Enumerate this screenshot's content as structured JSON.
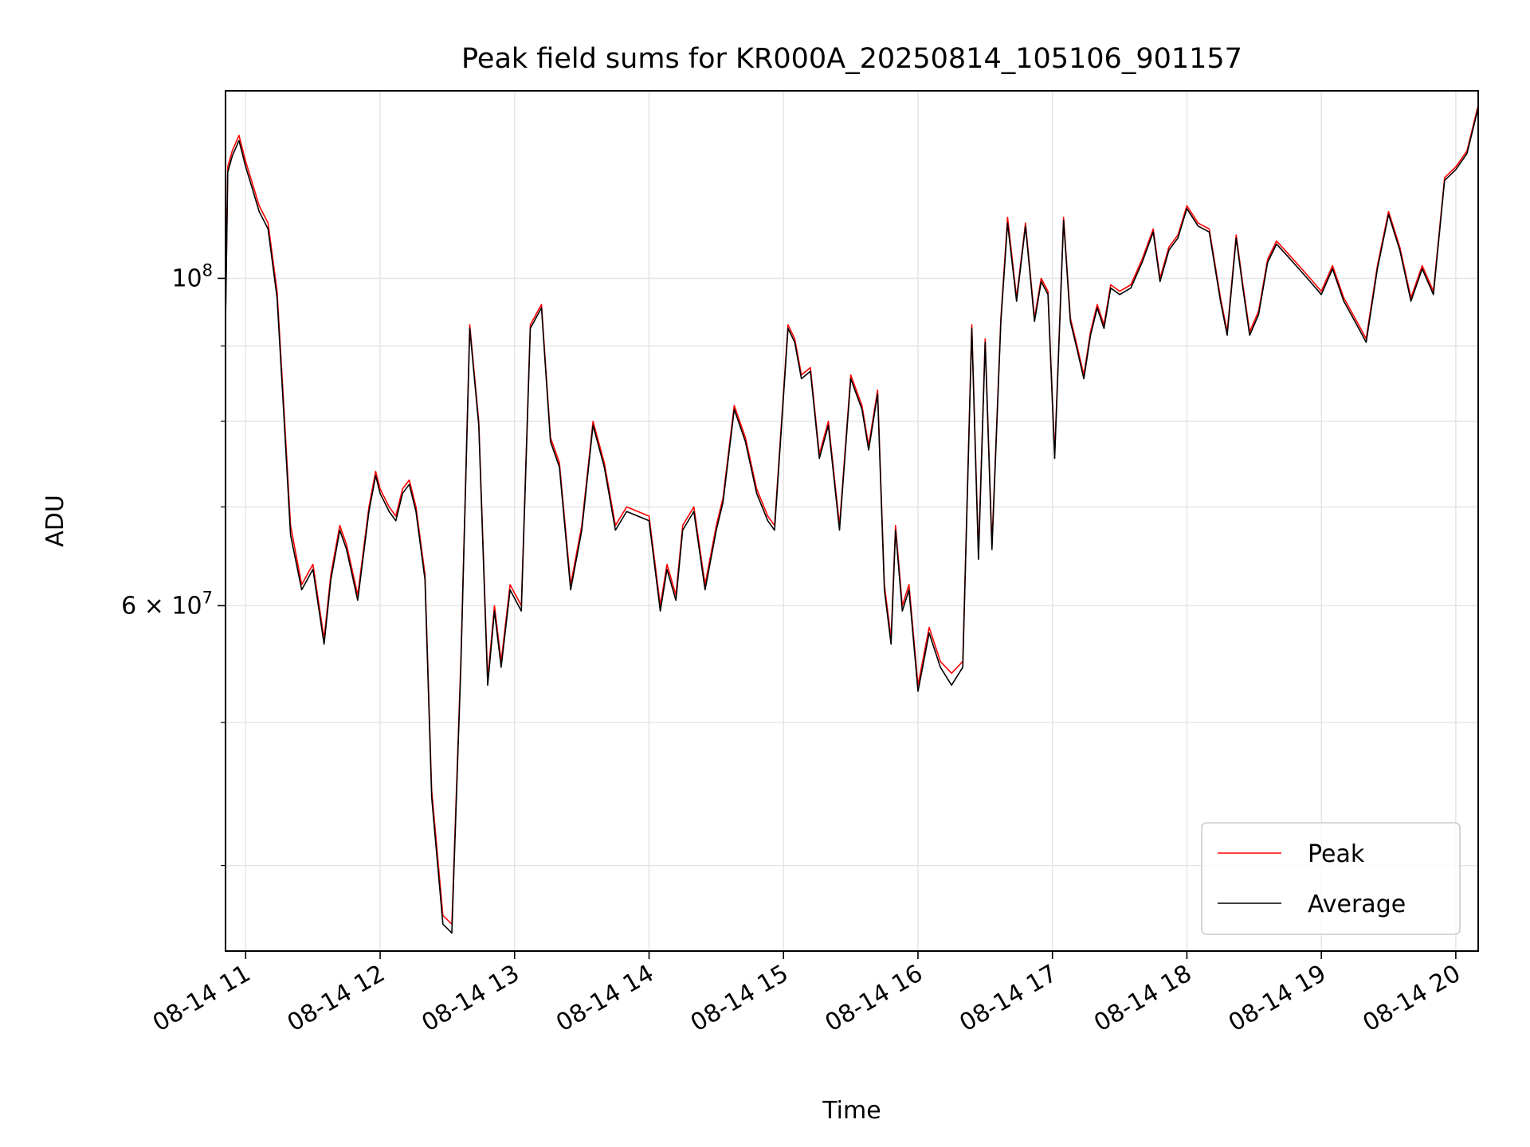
{
  "chart_data": {
    "type": "line",
    "title": "Peak field sums for KR000A_20250814_105106_901157",
    "xlabel": "Time",
    "ylabel": "ADU",
    "y_scale": "log",
    "ylim": [
      35000000,
      134000000
    ],
    "xlim": [
      "2025-08-14 10:51",
      "2025-08-14 20:10"
    ],
    "x_ticks": [
      "08-14 11",
      "08-14 12",
      "08-14 13",
      "08-14 14",
      "08-14 15",
      "08-14 16",
      "08-14 17",
      "08-14 18",
      "08-14 19",
      "08-14 20"
    ],
    "y_major_ticks": [
      {
        "value": 60000000,
        "label": "6 × 10⁷",
        "mantissa": "6",
        "exp": "7"
      },
      {
        "value": 100000000,
        "label": "10⁸",
        "mantissa": "",
        "exp": "8"
      }
    ],
    "y_minor_ticks": [
      40000000,
      50000000,
      70000000,
      80000000,
      90000000
    ],
    "grid": true,
    "legend_position": "lower-right",
    "colors": {
      "Peak": "#ff0000",
      "Average": "#000000"
    },
    "series": [
      {
        "name": "Peak",
        "x": [
          "2025-08-14 10:51",
          "2025-08-14 10:52",
          "2025-08-14 10:54",
          "2025-08-14 10:57",
          "2025-08-14 11:00",
          "2025-08-14 11:03",
          "2025-08-14 11:06",
          "2025-08-14 11:10",
          "2025-08-14 11:14",
          "2025-08-14 11:17",
          "2025-08-14 11:20",
          "2025-08-14 11:25",
          "2025-08-14 11:30",
          "2025-08-14 11:35",
          "2025-08-14 11:38",
          "2025-08-14 11:42",
          "2025-08-14 11:45",
          "2025-08-14 11:50",
          "2025-08-14 11:55",
          "2025-08-14 11:58",
          "2025-08-14 12:00",
          "2025-08-14 12:04",
          "2025-08-14 12:07",
          "2025-08-14 12:10",
          "2025-08-14 12:13",
          "2025-08-14 12:16",
          "2025-08-14 12:20",
          "2025-08-14 12:23",
          "2025-08-14 12:28",
          "2025-08-14 12:32",
          "2025-08-14 12:36",
          "2025-08-14 12:40",
          "2025-08-14 12:44",
          "2025-08-14 12:48",
          "2025-08-14 12:51",
          "2025-08-14 12:54",
          "2025-08-14 12:58",
          "2025-08-14 13:03",
          "2025-08-14 13:07",
          "2025-08-14 13:12",
          "2025-08-14 13:16",
          "2025-08-14 13:20",
          "2025-08-14 13:25",
          "2025-08-14 13:30",
          "2025-08-14 13:35",
          "2025-08-14 13:40",
          "2025-08-14 13:45",
          "2025-08-14 13:50",
          "2025-08-14 14:00",
          "2025-08-14 14:05",
          "2025-08-14 14:08",
          "2025-08-14 14:12",
          "2025-08-14 14:15",
          "2025-08-14 14:20",
          "2025-08-14 14:25",
          "2025-08-14 14:30",
          "2025-08-14 14:33",
          "2025-08-14 14:38",
          "2025-08-14 14:43",
          "2025-08-14 14:48",
          "2025-08-14 14:53",
          "2025-08-14 14:56",
          "2025-08-14 15:02",
          "2025-08-14 15:05",
          "2025-08-14 15:08",
          "2025-08-14 15:12",
          "2025-08-14 15:16",
          "2025-08-14 15:20",
          "2025-08-14 15:25",
          "2025-08-14 15:30",
          "2025-08-14 15:35",
          "2025-08-14 15:38",
          "2025-08-14 15:42",
          "2025-08-14 15:45",
          "2025-08-14 15:48",
          "2025-08-14 15:50",
          "2025-08-14 15:53",
          "2025-08-14 15:56",
          "2025-08-14 16:00",
          "2025-08-14 16:05",
          "2025-08-14 16:10",
          "2025-08-14 16:15",
          "2025-08-14 16:20",
          "2025-08-14 16:24",
          "2025-08-14 16:27",
          "2025-08-14 16:30",
          "2025-08-14 16:33",
          "2025-08-14 16:37",
          "2025-08-14 16:40",
          "2025-08-14 16:44",
          "2025-08-14 16:48",
          "2025-08-14 16:52",
          "2025-08-14 16:55",
          "2025-08-14 16:58",
          "2025-08-14 17:01",
          "2025-08-14 17:05",
          "2025-08-14 17:08",
          "2025-08-14 17:11",
          "2025-08-14 17:14",
          "2025-08-14 17:17",
          "2025-08-14 17:20",
          "2025-08-14 17:23",
          "2025-08-14 17:26",
          "2025-08-14 17:30",
          "2025-08-14 17:35",
          "2025-08-14 17:40",
          "2025-08-14 17:45",
          "2025-08-14 17:48",
          "2025-08-14 17:52",
          "2025-08-14 17:56",
          "2025-08-14 18:00",
          "2025-08-14 18:05",
          "2025-08-14 18:10",
          "2025-08-14 18:15",
          "2025-08-14 18:18",
          "2025-08-14 18:22",
          "2025-08-14 18:25",
          "2025-08-14 18:28",
          "2025-08-14 18:32",
          "2025-08-14 18:36",
          "2025-08-14 18:40",
          "2025-08-14 18:45",
          "2025-08-14 18:50",
          "2025-08-14 18:55",
          "2025-08-14 19:00",
          "2025-08-14 19:05",
          "2025-08-14 19:10",
          "2025-08-14 19:15",
          "2025-08-14 19:20",
          "2025-08-14 19:25",
          "2025-08-14 19:30",
          "2025-08-14 19:35",
          "2025-08-14 19:40",
          "2025-08-14 19:45",
          "2025-08-14 19:50",
          "2025-08-14 19:55",
          "2025-08-14 20:00",
          "2025-08-14 20:05",
          "2025-08-14 20:10"
        ],
        "y": [
          94000000,
          119000000,
          122000000,
          125000000,
          120000000,
          116000000,
          112000000,
          109000000,
          98000000,
          82000000,
          68000000,
          62000000,
          64000000,
          57000000,
          63000000,
          68000000,
          66000000,
          61000000,
          70000000,
          74000000,
          72000000,
          70000000,
          69000000,
          72000000,
          73000000,
          70000000,
          63000000,
          45000000,
          37000000,
          36500000,
          55000000,
          93000000,
          80000000,
          53500000,
          60000000,
          55000000,
          62000000,
          60000000,
          93000000,
          96000000,
          78000000,
          75000000,
          62000000,
          68000000,
          80000000,
          75000000,
          68000000,
          70000000,
          69000000,
          60000000,
          64000000,
          61000000,
          68000000,
          70000000,
          62000000,
          68000000,
          71000000,
          82000000,
          78000000,
          72000000,
          69000000,
          68000000,
          93000000,
          91000000,
          86000000,
          87000000,
          76000000,
          80000000,
          68000000,
          86000000,
          82000000,
          77000000,
          84000000,
          62000000,
          57000000,
          68000000,
          60000000,
          62000000,
          53000000,
          58000000,
          55000000,
          54000000,
          55000000,
          93000000,
          65000000,
          91000000,
          66000000,
          94000000,
          110000000,
          97000000,
          109000000,
          94000000,
          100000000,
          98000000,
          76000000,
          110000000,
          94000000,
          90000000,
          86000000,
          92000000,
          96000000,
          93000000,
          99000000,
          98000000,
          99000000,
          103000000,
          108000000,
          100000000,
          105000000,
          107000000,
          112000000,
          109000000,
          108000000,
          97000000,
          92000000,
          107000000,
          99000000,
          92000000,
          95000000,
          103000000,
          106000000,
          104000000,
          102000000,
          100000000,
          98000000,
          102000000,
          97000000,
          94000000,
          91000000,
          102000000,
          111000000,
          105000000,
          97000000,
          102000000,
          98000000,
          117000000,
          119000000,
          122000000,
          131000000
        ],
        "note": ""
      },
      {
        "name": "Average",
        "x": [
          "2025-08-14 10:51",
          "2025-08-14 10:52",
          "2025-08-14 10:54",
          "2025-08-14 10:57",
          "2025-08-14 11:00",
          "2025-08-14 11:03",
          "2025-08-14 11:06",
          "2025-08-14 11:10",
          "2025-08-14 11:14",
          "2025-08-14 11:17",
          "2025-08-14 11:20",
          "2025-08-14 11:25",
          "2025-08-14 11:30",
          "2025-08-14 11:35",
          "2025-08-14 11:38",
          "2025-08-14 11:42",
          "2025-08-14 11:45",
          "2025-08-14 11:50",
          "2025-08-14 11:55",
          "2025-08-14 11:58",
          "2025-08-14 12:00",
          "2025-08-14 12:04",
          "2025-08-14 12:07",
          "2025-08-14 12:10",
          "2025-08-14 12:13",
          "2025-08-14 12:16",
          "2025-08-14 12:20",
          "2025-08-14 12:23",
          "2025-08-14 12:28",
          "2025-08-14 12:32",
          "2025-08-14 12:36",
          "2025-08-14 12:40",
          "2025-08-14 12:44",
          "2025-08-14 12:48",
          "2025-08-14 12:51",
          "2025-08-14 12:54",
          "2025-08-14 12:58",
          "2025-08-14 13:03",
          "2025-08-14 13:07",
          "2025-08-14 13:12",
          "2025-08-14 13:16",
          "2025-08-14 13:20",
          "2025-08-14 13:25",
          "2025-08-14 13:30",
          "2025-08-14 13:35",
          "2025-08-14 13:40",
          "2025-08-14 13:45",
          "2025-08-14 13:50",
          "2025-08-14 14:00",
          "2025-08-14 14:05",
          "2025-08-14 14:08",
          "2025-08-14 14:12",
          "2025-08-14 14:15",
          "2025-08-14 14:20",
          "2025-08-14 14:25",
          "2025-08-14 14:30",
          "2025-08-14 14:33",
          "2025-08-14 14:38",
          "2025-08-14 14:43",
          "2025-08-14 14:48",
          "2025-08-14 14:53",
          "2025-08-14 14:56",
          "2025-08-14 15:02",
          "2025-08-14 15:05",
          "2025-08-14 15:08",
          "2025-08-14 15:12",
          "2025-08-14 15:16",
          "2025-08-14 15:20",
          "2025-08-14 15:25",
          "2025-08-14 15:30",
          "2025-08-14 15:35",
          "2025-08-14 15:38",
          "2025-08-14 15:42",
          "2025-08-14 15:45",
          "2025-08-14 15:48",
          "2025-08-14 15:50",
          "2025-08-14 15:53",
          "2025-08-14 15:56",
          "2025-08-14 16:00",
          "2025-08-14 16:05",
          "2025-08-14 16:10",
          "2025-08-14 16:15",
          "2025-08-14 16:20",
          "2025-08-14 16:24",
          "2025-08-14 16:27",
          "2025-08-14 16:30",
          "2025-08-14 16:33",
          "2025-08-14 16:37",
          "2025-08-14 16:40",
          "2025-08-14 16:44",
          "2025-08-14 16:48",
          "2025-08-14 16:52",
          "2025-08-14 16:55",
          "2025-08-14 16:58",
          "2025-08-14 17:01",
          "2025-08-14 17:05",
          "2025-08-14 17:08",
          "2025-08-14 17:11",
          "2025-08-14 17:14",
          "2025-08-14 17:17",
          "2025-08-14 17:20",
          "2025-08-14 17:23",
          "2025-08-14 17:26",
          "2025-08-14 17:30",
          "2025-08-14 17:35",
          "2025-08-14 17:40",
          "2025-08-14 17:45",
          "2025-08-14 17:48",
          "2025-08-14 17:52",
          "2025-08-14 17:56",
          "2025-08-14 18:00",
          "2025-08-14 18:05",
          "2025-08-14 18:10",
          "2025-08-14 18:15",
          "2025-08-14 18:18",
          "2025-08-14 18:22",
          "2025-08-14 18:25",
          "2025-08-14 18:28",
          "2025-08-14 18:32",
          "2025-08-14 18:36",
          "2025-08-14 18:40",
          "2025-08-14 18:45",
          "2025-08-14 18:50",
          "2025-08-14 18:55",
          "2025-08-14 19:00",
          "2025-08-14 19:05",
          "2025-08-14 19:10",
          "2025-08-14 19:15",
          "2025-08-14 19:20",
          "2025-08-14 19:25",
          "2025-08-14 19:30",
          "2025-08-14 19:35",
          "2025-08-14 19:40",
          "2025-08-14 19:45",
          "2025-08-14 19:50",
          "2025-08-14 19:55",
          "2025-08-14 20:00",
          "2025-08-14 20:05",
          "2025-08-14 20:10"
        ],
        "y": [
          93000000,
          118000000,
          121000000,
          124000000,
          119000000,
          115000000,
          111000000,
          108000000,
          97000000,
          81000000,
          67000000,
          61500000,
          63500000,
          56500000,
          62500000,
          67500000,
          65500000,
          60500000,
          69500000,
          73500000,
          71500000,
          69500000,
          68500000,
          71500000,
          72500000,
          69500000,
          62500000,
          44500000,
          36500000,
          36000000,
          54500000,
          92500000,
          79500000,
          53000000,
          59500000,
          54500000,
          61500000,
          59500000,
          92500000,
          95500000,
          77500000,
          74500000,
          61500000,
          67500000,
          79500000,
          74500000,
          67500000,
          69500000,
          68500000,
          59500000,
          63500000,
          60500000,
          67500000,
          69500000,
          61500000,
          67500000,
          70500000,
          81500000,
          77500000,
          71500000,
          68500000,
          67500000,
          92500000,
          90500000,
          85500000,
          86500000,
          75500000,
          79500000,
          67500000,
          85500000,
          81500000,
          76500000,
          83500000,
          61500000,
          56500000,
          67500000,
          59500000,
          61500000,
          52500000,
          57500000,
          54500000,
          53000000,
          54500000,
          92500000,
          64500000,
          90500000,
          65500000,
          93500000,
          109000000,
          96500000,
          108500000,
          93500000,
          99500000,
          97500000,
          75500000,
          109500000,
          93500000,
          89500000,
          85500000,
          91500000,
          95500000,
          92500000,
          98500000,
          97500000,
          98500000,
          102500000,
          107500000,
          99500000,
          104500000,
          106500000,
          111500000,
          108500000,
          107500000,
          96500000,
          91500000,
          106500000,
          98500000,
          91500000,
          94500000,
          102500000,
          105500000,
          103500000,
          101500000,
          99500000,
          97500000,
          101500000,
          96500000,
          93500000,
          90500000,
          101500000,
          110500000,
          104500000,
          96500000,
          101500000,
          97500000,
          116500000,
          118500000,
          121500000,
          130500000
        ]
      }
    ]
  }
}
